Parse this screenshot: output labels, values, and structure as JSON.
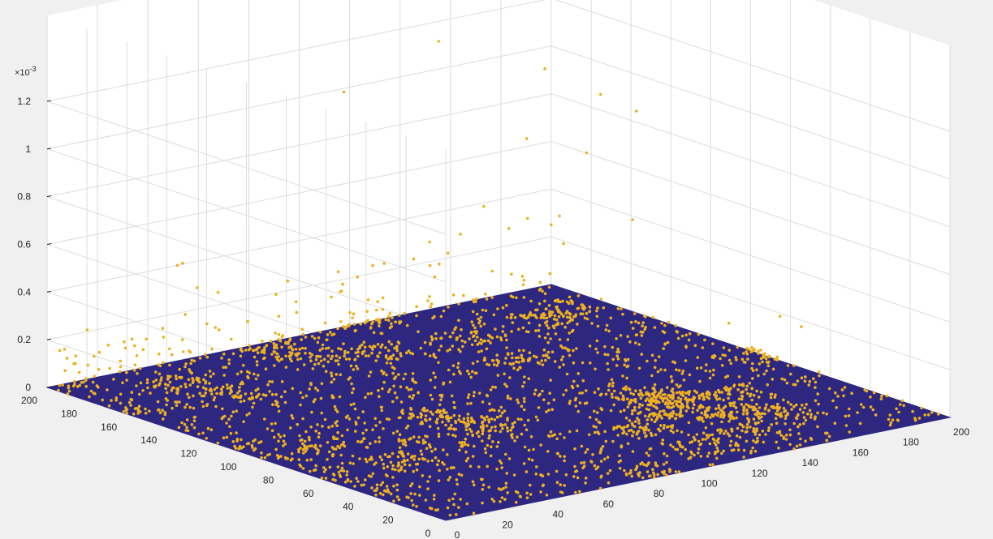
{
  "chart_data": {
    "type": "scatter3d",
    "title": "",
    "xlabel": "",
    "ylabel": "",
    "zlabel": "",
    "xlim": [
      0,
      200
    ],
    "ylim": [
      0,
      200
    ],
    "zlim": [
      0,
      1.2
    ],
    "z_exponent_label": "×10",
    "z_exponent": "-3",
    "x_ticks": [
      "0",
      "20",
      "40",
      "60",
      "80",
      "100",
      "120",
      "140",
      "160",
      "180",
      "200"
    ],
    "y_ticks": [
      "0",
      "20",
      "40",
      "60",
      "80",
      "100",
      "120",
      "140",
      "160",
      "180",
      "200"
    ],
    "z_ticks": [
      "0",
      "0.2",
      "0.4",
      "0.6",
      "0.8",
      "1",
      "1.2"
    ],
    "grid": true,
    "legend": "none",
    "floor_color": "#2e2780",
    "marker_color": "#edb120",
    "tall_points": [
      {
        "x": 108,
        "y": 96,
        "z": 1.1
      },
      {
        "x": 130,
        "y": 168,
        "z": 1.26
      },
      {
        "x": 150,
        "y": 140,
        "z": 1.18
      },
      {
        "x": 180,
        "y": 132,
        "z": 0.96
      },
      {
        "x": 180,
        "y": 150,
        "z": 0.98
      },
      {
        "x": 94,
        "y": 170,
        "z": 1.12
      },
      {
        "x": 195,
        "y": 176,
        "z": 0.63
      },
      {
        "x": 102,
        "y": 110,
        "z": 0.79
      },
      {
        "x": 110,
        "y": 80,
        "z": 0.7
      },
      {
        "x": 150,
        "y": 96,
        "z": 0.67
      },
      {
        "x": 140,
        "y": 120,
        "z": 0.64
      },
      {
        "x": 20,
        "y": 160,
        "z": 0.58
      },
      {
        "x": 30,
        "y": 170,
        "z": 0.54
      },
      {
        "x": 10,
        "y": 112,
        "z": 0.5
      },
      {
        "x": 160,
        "y": 24,
        "z": 0.4
      },
      {
        "x": 136,
        "y": 30,
        "z": 0.45
      },
      {
        "x": 98,
        "y": 64,
        "z": 0.42
      },
      {
        "x": 120,
        "y": 40,
        "z": 0.46
      },
      {
        "x": 180,
        "y": 60,
        "z": 0.3
      },
      {
        "x": 30,
        "y": 110,
        "z": 0.43
      }
    ],
    "notes_counts": {
      "floor_points": 2600,
      "edge_points": 260
    }
  }
}
